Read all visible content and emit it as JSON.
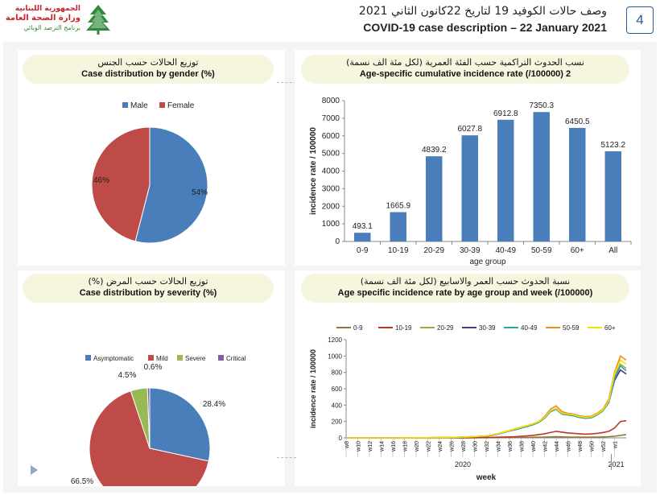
{
  "header": {
    "logo_line1": "الجمهورية اللبنانية",
    "logo_line2": "وزارة الصحة العامة",
    "logo_line3": "برنامج الترصد الوبائي",
    "title_ar": "وصف حالات الكوفيد 19 لتاريخ 22كانون الثاني 2021",
    "title_en": "COVID-19 case description – 22 January 2021",
    "page_number": "4"
  },
  "colors": {
    "blue": "#4a7ebb",
    "red": "#be4b48",
    "green": "#98b954",
    "purple": "#7d60a0",
    "header_bg": "#f6f5de"
  },
  "panels": {
    "gender": {
      "title_ar": "توزيع الحالات حسب الجنس",
      "title_en": "Case distribution by gender (%)"
    },
    "age": {
      "title_ar": "نسب الحدوث التراكمية حسب الفئة العمرية (لكل مئة الف نسمة)",
      "title_en": "Age-specific cumulative incidence rate (/100000) 2"
    },
    "severity": {
      "title_ar": "توزيع الحالات حسب المرض (%)",
      "title_en": "Case distribution by severity (%)"
    },
    "week": {
      "title_ar": "نسبة الحدوث حسب العمر والاسابيع (لكل مئة الف نسمة)",
      "title_en": "Age specific incidence rate by age group and week (/100000)"
    }
  },
  "chart_data": [
    {
      "type": "pie",
      "id": "gender",
      "labels": [
        "Male",
        "Female"
      ],
      "values": [
        54,
        46
      ],
      "value_labels": [
        "54%",
        "46%"
      ],
      "colors": [
        "#4a7ebb",
        "#be4b48"
      ],
      "legend_position": "top"
    },
    {
      "type": "bar",
      "id": "age",
      "categories": [
        "0-9",
        "10-19",
        "20-29",
        "30-39",
        "40-49",
        "50-59",
        "60+",
        "All"
      ],
      "values": [
        493.1,
        1665.9,
        4839.2,
        6027.8,
        6912.8,
        7350.3,
        6450.5,
        5123.2
      ],
      "value_labels": [
        "493.1",
        "1665.9",
        "4839.2",
        "6027.8",
        "6912.8",
        "7350.3",
        "6450.5",
        "5123.2"
      ],
      "xlabel": "age group",
      "ylabel": "incidence rate / 100000",
      "ylim": [
        0,
        8000
      ],
      "yticks": [
        "0",
        "1000",
        "2000",
        "3000",
        "4000",
        "5000",
        "6000",
        "7000",
        "8000"
      ],
      "color": "#4a7ebb"
    },
    {
      "type": "pie",
      "id": "severity",
      "labels": [
        "Asymptomatic",
        "Mild",
        "Severe",
        "Critical"
      ],
      "values": [
        28.4,
        66.5,
        4.5,
        0.6
      ],
      "value_labels": [
        "28.4%",
        "66.5%",
        "4.5%",
        "0.6%"
      ],
      "colors": [
        "#4a7ebb",
        "#be4b48",
        "#98b954",
        "#7d60a0"
      ],
      "legend_position": "top"
    },
    {
      "type": "line",
      "id": "week",
      "x": [
        "w8",
        "w9",
        "w10",
        "w11",
        "w12",
        "w13",
        "w14",
        "w15",
        "w16",
        "w17",
        "w18",
        "w19",
        "w20",
        "w21",
        "w22",
        "w23",
        "w24",
        "w25",
        "w26",
        "w27",
        "w28",
        "w29",
        "w30",
        "w31",
        "w32",
        "w33",
        "w34",
        "w35",
        "w36",
        "w37",
        "w38",
        "w39",
        "w40",
        "w41",
        "w42",
        "w43",
        "w44",
        "w45",
        "w46",
        "w47",
        "w48",
        "w49",
        "w50",
        "w51",
        "w52",
        "w53",
        "w1",
        "w2",
        "w3"
      ],
      "xtick_labels": [
        "w8",
        "w10",
        "w12",
        "w14",
        "w16",
        "w18",
        "w20",
        "w22",
        "w24",
        "w26",
        "w28",
        "w30",
        "w32",
        "w34",
        "w36",
        "w38",
        "w40",
        "w42",
        "w44",
        "w46",
        "w48",
        "w50",
        "w52",
        "w1"
      ],
      "year_labels": [
        "2020",
        "2021"
      ],
      "xlabel": "week",
      "ylabel": "incidence rate / 100000",
      "ylim": [
        0,
        1200
      ],
      "yticks": [
        "0",
        "200",
        "400",
        "600",
        "800",
        "1000",
        "1200"
      ],
      "series": [
        {
          "name": "0-9",
          "color": "#8c7a3a",
          "values": [
            0,
            0,
            0,
            0,
            0,
            0,
            0,
            0,
            0,
            0,
            0,
            0,
            0,
            0,
            0,
            0,
            0,
            0,
            0,
            0,
            0,
            1,
            1,
            2,
            2,
            2,
            3,
            3,
            3,
            4,
            5,
            6,
            7,
            8,
            10,
            12,
            14,
            12,
            10,
            9,
            9,
            8,
            9,
            10,
            12,
            15,
            20,
            30,
            40
          ]
        },
        {
          "name": "10-19",
          "color": "#c0322f",
          "values": [
            0,
            0,
            0,
            0,
            0,
            0,
            0,
            0,
            0,
            0,
            0,
            0,
            0,
            0,
            0,
            0,
            0,
            0,
            0,
            1,
            1,
            2,
            3,
            4,
            5,
            6,
            8,
            10,
            12,
            15,
            20,
            25,
            30,
            40,
            50,
            65,
            80,
            70,
            60,
            55,
            50,
            45,
            48,
            55,
            65,
            80,
            120,
            200,
            210
          ]
        },
        {
          "name": "20-29",
          "color": "#8db04a",
          "values": [
            0,
            0,
            0,
            0,
            0,
            0,
            0,
            0,
            0,
            0,
            1,
            1,
            2,
            2,
            2,
            3,
            3,
            4,
            5,
            7,
            9,
            12,
            16,
            20,
            25,
            35,
            50,
            70,
            90,
            110,
            130,
            150,
            170,
            200,
            250,
            330,
            360,
            300,
            290,
            280,
            260,
            250,
            255,
            290,
            340,
            450,
            750,
            900,
            850
          ]
        },
        {
          "name": "30-39",
          "color": "#4b3a8c",
          "values": [
            0,
            0,
            0,
            0,
            0,
            0,
            0,
            0,
            0,
            0,
            1,
            1,
            2,
            2,
            2,
            3,
            3,
            4,
            5,
            7,
            9,
            12,
            15,
            18,
            22,
            30,
            45,
            65,
            85,
            100,
            120,
            140,
            160,
            190,
            240,
            320,
            350,
            290,
            280,
            270,
            250,
            240,
            245,
            280,
            330,
            430,
            700,
            830,
            780
          ]
        },
        {
          "name": "40-49",
          "color": "#2e9fb0",
          "values": [
            0,
            0,
            0,
            0,
            0,
            0,
            0,
            0,
            0,
            0,
            1,
            1,
            2,
            2,
            2,
            3,
            3,
            4,
            5,
            7,
            9,
            12,
            15,
            18,
            22,
            30,
            45,
            65,
            85,
            100,
            120,
            140,
            160,
            190,
            240,
            320,
            350,
            290,
            280,
            270,
            250,
            240,
            245,
            280,
            330,
            430,
            720,
            880,
            820
          ]
        },
        {
          "name": "50-59",
          "color": "#f08a1c",
          "values": [
            0,
            0,
            0,
            0,
            0,
            0,
            0,
            0,
            0,
            0,
            1,
            1,
            2,
            2,
            2,
            3,
            3,
            4,
            5,
            7,
            9,
            12,
            16,
            20,
            25,
            35,
            50,
            70,
            90,
            110,
            130,
            150,
            170,
            200,
            260,
            350,
            390,
            320,
            300,
            290,
            270,
            260,
            265,
            300,
            350,
            470,
            800,
            1000,
            950
          ]
        },
        {
          "name": "60+",
          "color": "#f2e200",
          "values": [
            0,
            0,
            0,
            0,
            0,
            0,
            0,
            0,
            0,
            0,
            1,
            1,
            2,
            2,
            2,
            3,
            3,
            4,
            5,
            7,
            9,
            12,
            16,
            20,
            25,
            35,
            50,
            70,
            90,
            110,
            130,
            150,
            170,
            200,
            250,
            330,
            360,
            300,
            290,
            280,
            260,
            250,
            255,
            290,
            340,
            450,
            780,
            950,
            900
          ]
        }
      ]
    }
  ]
}
